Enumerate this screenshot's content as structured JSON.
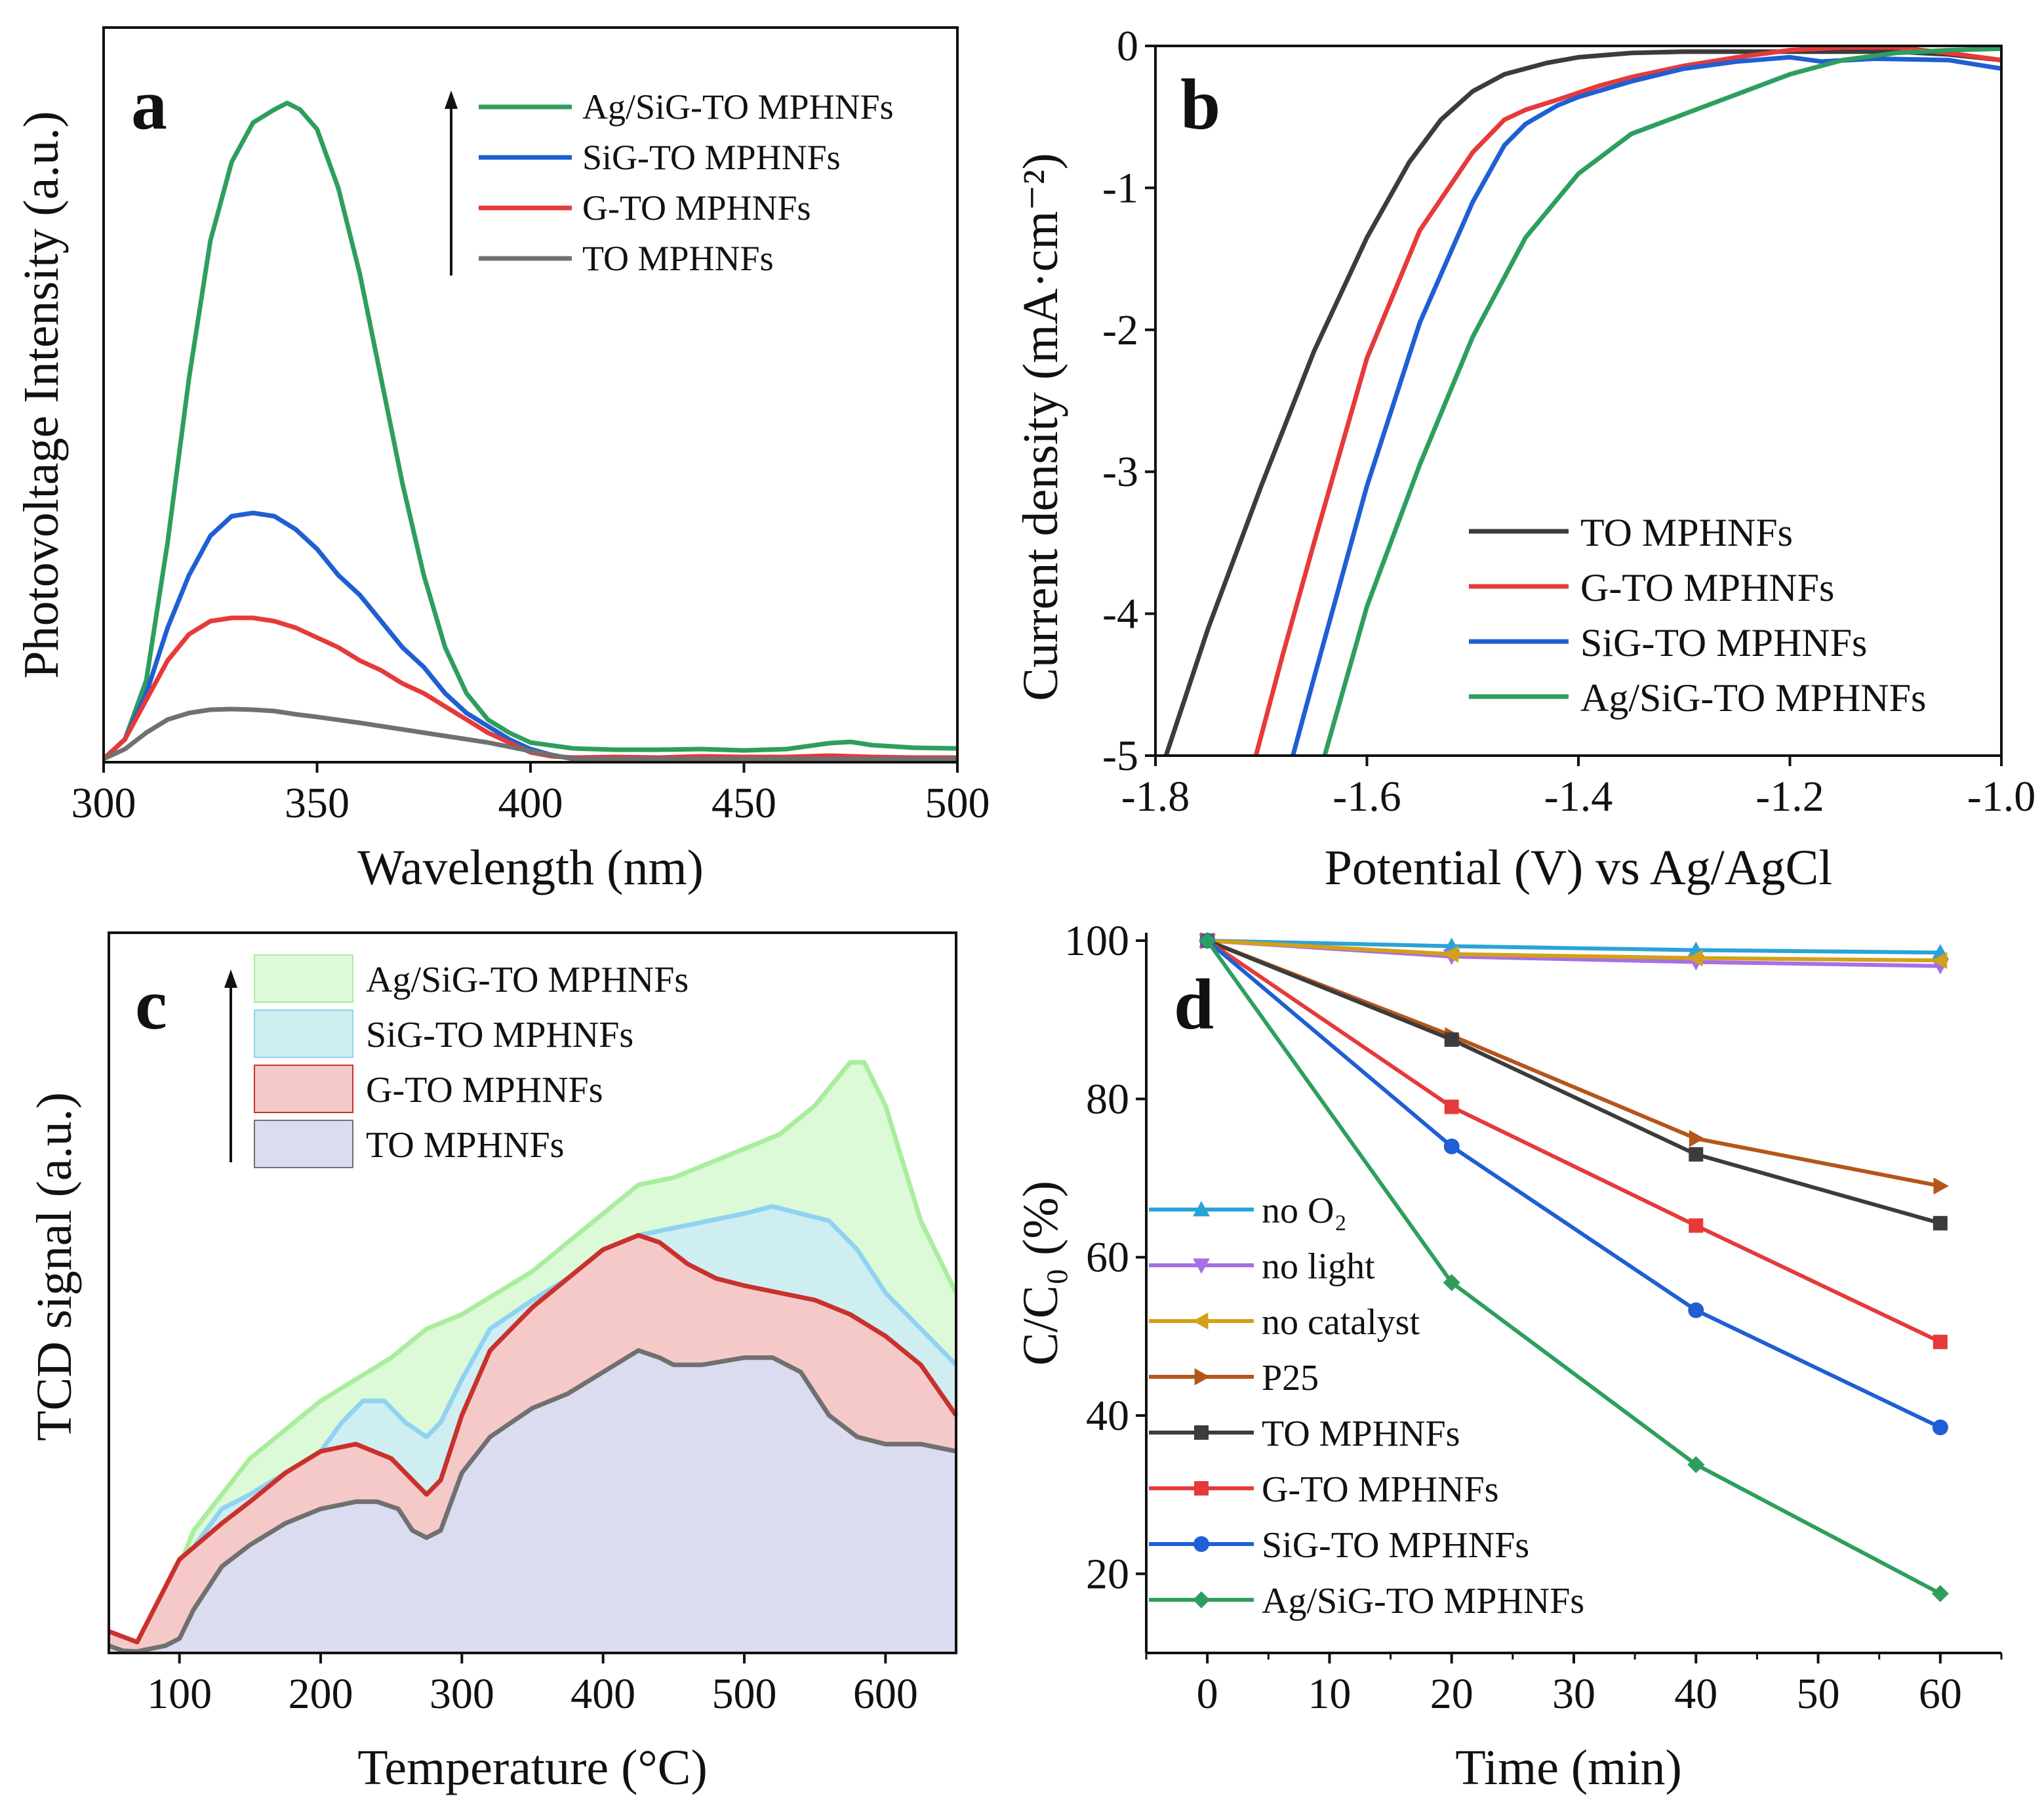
{
  "colors": {
    "green": "#2e9e5e",
    "blue": "#1f5fd3",
    "red": "#e63a3a",
    "gray": "#707070",
    "black": "#3c3c3c",
    "cyan": "#2aa3d8",
    "violet": "#a66fe6",
    "gold": "#d4a017",
    "brown": "#b4561a",
    "fill_green": "#dcf9d8",
    "fill_cyan": "#cfeef2",
    "fill_red": "#f6c9c9",
    "fill_lav": "#dcdcf0",
    "line_green": "#a8ee9c",
    "line_cyan": "#8fd3f0",
    "line_red": "#c9312c",
    "line_gray": "#707070"
  },
  "chart_data": [
    {
      "panel": "a",
      "type": "line",
      "xlabel": "Wavelength (nm)",
      "ylabel": "Photovoltage Intensity (a.u.)",
      "xlim": [
        300,
        500
      ],
      "ylim": [
        0,
        1.0
      ],
      "xticks": [
        300,
        350,
        400,
        450,
        500
      ],
      "legend_arrow": true,
      "legend_position": "top-right",
      "series": [
        {
          "name": "Ag/SiG-TO MPHNFs",
          "color": "green",
          "x": [
            300,
            305,
            310,
            315,
            320,
            325,
            330,
            335,
            340,
            343,
            346,
            350,
            355,
            360,
            365,
            370,
            375,
            380,
            385,
            390,
            395,
            400,
            410,
            420,
            430,
            440,
            450,
            460,
            470,
            475,
            480,
            490,
            500
          ],
          "y": [
            0.0,
            0.03,
            0.12,
            0.33,
            0.58,
            0.79,
            0.91,
            0.97,
            0.99,
            1.0,
            0.99,
            0.96,
            0.87,
            0.74,
            0.58,
            0.42,
            0.28,
            0.17,
            0.1,
            0.06,
            0.04,
            0.025,
            0.016,
            0.014,
            0.014,
            0.015,
            0.013,
            0.015,
            0.024,
            0.026,
            0.021,
            0.017,
            0.016
          ]
        },
        {
          "name": "SiG-TO MPHNFs",
          "color": "blue",
          "x": [
            300,
            305,
            310,
            315,
            320,
            325,
            330,
            335,
            340,
            345,
            350,
            355,
            360,
            365,
            370,
            375,
            380,
            385,
            390,
            395,
            400,
            405,
            410,
            420,
            450,
            480,
            500
          ],
          "y": [
            0.0,
            0.03,
            0.1,
            0.2,
            0.28,
            0.34,
            0.37,
            0.375,
            0.37,
            0.35,
            0.32,
            0.28,
            0.25,
            0.21,
            0.17,
            0.14,
            0.1,
            0.07,
            0.05,
            0.03,
            0.015,
            0.006,
            0.0,
            0.0,
            0.0,
            0.0,
            0.0
          ]
        },
        {
          "name": "G-TO MPHNFs",
          "color": "red",
          "x": [
            300,
            305,
            310,
            315,
            320,
            325,
            330,
            335,
            340,
            345,
            350,
            355,
            360,
            365,
            370,
            375,
            380,
            385,
            390,
            395,
            400,
            405,
            410,
            420,
            430,
            440,
            450,
            460,
            470,
            480,
            490,
            500
          ],
          "y": [
            0.0,
            0.03,
            0.09,
            0.15,
            0.19,
            0.21,
            0.215,
            0.215,
            0.21,
            0.2,
            0.185,
            0.17,
            0.15,
            0.135,
            0.115,
            0.1,
            0.08,
            0.06,
            0.04,
            0.025,
            0.01,
            0.004,
            0.002,
            0.003,
            0.002,
            0.004,
            0.003,
            0.003,
            0.005,
            0.003,
            0.002,
            0.002
          ]
        },
        {
          "name": "TO MPHNFs",
          "color": "gray",
          "x": [
            300,
            305,
            310,
            315,
            320,
            325,
            330,
            335,
            340,
            345,
            350,
            360,
            370,
            380,
            390,
            400,
            410,
            450,
            500
          ],
          "y": [
            0.0,
            0.015,
            0.04,
            0.06,
            0.07,
            0.075,
            0.076,
            0.075,
            0.073,
            0.068,
            0.064,
            0.055,
            0.045,
            0.035,
            0.025,
            0.012,
            0.0,
            0.0,
            0.0
          ]
        }
      ]
    },
    {
      "panel": "b",
      "type": "line",
      "xlabel": "Potential (V) vs Ag/AgCl",
      "ylabel": "Current density (mA·cm⁻²)",
      "xlim": [
        -1.8,
        -1.0
      ],
      "ylim": [
        -5,
        0
      ],
      "xticks": [
        -1.8,
        -1.6,
        -1.4,
        -1.2,
        -1.0
      ],
      "xtick_labels": [
        "-1.8",
        "-1.6",
        "-1.4",
        "-1.2",
        "-1.0"
      ],
      "yticks": [
        -5,
        -4,
        -3,
        -2,
        -1,
        0
      ],
      "legend_position": "bottom-right",
      "series": [
        {
          "name": "TO MPHNFs",
          "color": "black",
          "x": [
            -1.79,
            -1.75,
            -1.7,
            -1.65,
            -1.6,
            -1.56,
            -1.53,
            -1.5,
            -1.47,
            -1.43,
            -1.4,
            -1.35,
            -1.3,
            -1.25,
            -1.2,
            -1.15,
            -1.1,
            -1.05,
            -1.0
          ],
          "y": [
            -5.0,
            -4.1,
            -3.1,
            -2.15,
            -1.35,
            -0.82,
            -0.52,
            -0.32,
            -0.2,
            -0.12,
            -0.08,
            -0.05,
            -0.04,
            -0.04,
            -0.04,
            -0.04,
            -0.04,
            -0.06,
            -0.1
          ]
        },
        {
          "name": "G-TO MPHNFs",
          "color": "red",
          "x": [
            -1.705,
            -1.68,
            -1.65,
            -1.6,
            -1.55,
            -1.5,
            -1.47,
            -1.45,
            -1.42,
            -1.38,
            -1.35,
            -1.3,
            -1.25,
            -1.2,
            -1.15,
            -1.1,
            -1.05,
            -1.0
          ],
          "y": [
            -5.0,
            -4.3,
            -3.5,
            -2.2,
            -1.3,
            -0.75,
            -0.52,
            -0.45,
            -0.38,
            -0.28,
            -0.22,
            -0.14,
            -0.08,
            -0.03,
            -0.01,
            -0.01,
            -0.05,
            -0.1
          ]
        },
        {
          "name": "SiG-TO MPHNFs",
          "color": "blue",
          "x": [
            -1.67,
            -1.65,
            -1.6,
            -1.55,
            -1.5,
            -1.47,
            -1.45,
            -1.42,
            -1.4,
            -1.35,
            -1.3,
            -1.25,
            -1.2,
            -1.17,
            -1.12,
            -1.05,
            -1.0
          ],
          "y": [
            -5.0,
            -4.45,
            -3.1,
            -1.95,
            -1.1,
            -0.7,
            -0.55,
            -0.42,
            -0.36,
            -0.25,
            -0.16,
            -0.11,
            -0.08,
            -0.11,
            -0.09,
            -0.1,
            -0.16
          ]
        },
        {
          "name": "Ag/SiG-TO MPHNFs",
          "color": "green",
          "x": [
            -1.64,
            -1.6,
            -1.55,
            -1.5,
            -1.45,
            -1.4,
            -1.35,
            -1.3,
            -1.25,
            -1.2,
            -1.15,
            -1.1,
            -1.05,
            -1.0
          ],
          "y": [
            -5.0,
            -3.95,
            -2.95,
            -2.05,
            -1.35,
            -0.9,
            -0.62,
            -0.48,
            -0.34,
            -0.2,
            -0.1,
            -0.05,
            -0.03,
            -0.02
          ]
        }
      ]
    },
    {
      "panel": "c",
      "type": "area",
      "xlabel": "Temperature (°C)",
      "ylabel": "TCD  signal (a.u.)",
      "xlim": [
        50,
        650
      ],
      "ylim": [
        0,
        1.0
      ],
      "xticks": [
        100,
        200,
        300,
        400,
        500,
        600
      ],
      "legend_arrow": true,
      "legend_position": "top-left",
      "series": [
        {
          "name": "Ag/SiG-TO MPHNFs",
          "fill": "fill_green",
          "line": "line_green",
          "x": [
            50,
            70,
            100,
            110,
            130,
            150,
            175,
            200,
            225,
            250,
            275,
            300,
            325,
            350,
            375,
            400,
            425,
            450,
            475,
            500,
            525,
            550,
            575,
            585,
            600,
            625,
            650
          ],
          "y": [
            0.03,
            0.015,
            0.12,
            0.17,
            0.22,
            0.27,
            0.31,
            0.35,
            0.38,
            0.41,
            0.45,
            0.47,
            0.5,
            0.53,
            0.57,
            0.61,
            0.65,
            0.66,
            0.68,
            0.7,
            0.72,
            0.76,
            0.82,
            0.82,
            0.76,
            0.6,
            0.5
          ]
        },
        {
          "name": "SiG-TO MPHNFs",
          "fill": "fill_cyan",
          "line": "line_cyan",
          "x": [
            50,
            70,
            100,
            130,
            150,
            175,
            200,
            215,
            230,
            245,
            260,
            275,
            285,
            300,
            320,
            350,
            375,
            400,
            425,
            450,
            475,
            500,
            520,
            540,
            560,
            580,
            600,
            625,
            650
          ],
          "y": [
            0.03,
            0.015,
            0.12,
            0.2,
            0.22,
            0.25,
            0.28,
            0.32,
            0.35,
            0.35,
            0.32,
            0.3,
            0.32,
            0.38,
            0.45,
            0.49,
            0.52,
            0.56,
            0.58,
            0.59,
            0.6,
            0.61,
            0.62,
            0.61,
            0.6,
            0.56,
            0.5,
            0.45,
            0.4
          ]
        },
        {
          "name": "G-TO MPHNFs",
          "fill": "fill_red",
          "line": "line_red",
          "x": [
            50,
            70,
            100,
            130,
            150,
            175,
            200,
            225,
            250,
            265,
            275,
            285,
            300,
            320,
            350,
            375,
            400,
            425,
            440,
            460,
            480,
            500,
            525,
            550,
            575,
            600,
            625,
            650
          ],
          "y": [
            0.03,
            0.015,
            0.13,
            0.18,
            0.21,
            0.25,
            0.28,
            0.29,
            0.27,
            0.24,
            0.22,
            0.24,
            0.33,
            0.42,
            0.48,
            0.52,
            0.56,
            0.58,
            0.57,
            0.54,
            0.52,
            0.51,
            0.5,
            0.49,
            0.47,
            0.44,
            0.4,
            0.33
          ]
        },
        {
          "name": "TO MPHNFs",
          "fill": "fill_lav",
          "line": "line_gray",
          "x": [
            50,
            60,
            70,
            90,
            100,
            110,
            130,
            150,
            175,
            200,
            225,
            240,
            255,
            265,
            275,
            285,
            300,
            320,
            350,
            375,
            400,
            425,
            440,
            450,
            470,
            500,
            520,
            540,
            560,
            580,
            600,
            625,
            650
          ],
          "y": [
            0.01,
            0.003,
            0.002,
            0.01,
            0.02,
            0.06,
            0.12,
            0.15,
            0.18,
            0.2,
            0.21,
            0.21,
            0.2,
            0.17,
            0.16,
            0.17,
            0.25,
            0.3,
            0.34,
            0.36,
            0.39,
            0.42,
            0.41,
            0.4,
            0.4,
            0.41,
            0.41,
            0.39,
            0.33,
            0.3,
            0.29,
            0.29,
            0.28
          ]
        }
      ]
    },
    {
      "panel": "d",
      "type": "line",
      "xlabel": "Time (min)",
      "ylabel": "C/C₀ (%)",
      "xlim": [
        -5,
        65
      ],
      "ylim": [
        10,
        101
      ],
      "xticks": [
        0,
        10,
        20,
        30,
        40,
        50,
        60
      ],
      "yticks": [
        20,
        40,
        60,
        80,
        100
      ],
      "legend_position": "bottom-left",
      "series": [
        {
          "name": "no O₂",
          "color": "cyan",
          "marker": "triangle-up",
          "x": [
            0,
            20,
            40,
            60
          ],
          "y": [
            100,
            99.3,
            98.8,
            98.5
          ]
        },
        {
          "name": "no light",
          "color": "violet",
          "marker": "triangle-down",
          "x": [
            0,
            20,
            40,
            60
          ],
          "y": [
            100,
            98.0,
            97.3,
            96.8
          ]
        },
        {
          "name": "no catalyst",
          "color": "gold",
          "marker": "triangle-left",
          "x": [
            0,
            20,
            40,
            60
          ],
          "y": [
            100,
            98.3,
            97.8,
            97.5
          ]
        },
        {
          "name": "P25",
          "color": "brown",
          "marker": "triangle-right",
          "x": [
            0,
            20,
            40,
            60
          ],
          "y": [
            100,
            88,
            75,
            69
          ]
        },
        {
          "name": "TO MPHNFs",
          "color": "black",
          "marker": "square",
          "x": [
            0,
            20,
            40,
            60
          ],
          "y": [
            100,
            87.5,
            73,
            64.3
          ]
        },
        {
          "name": "G-TO MPHNFs",
          "color": "red",
          "marker": "square",
          "x": [
            0,
            20,
            40,
            60
          ],
          "y": [
            100,
            79,
            64,
            49.3
          ]
        },
        {
          "name": "SiG-TO MPHNFs",
          "color": "blue",
          "marker": "circle",
          "x": [
            0,
            20,
            40,
            60
          ],
          "y": [
            100,
            74,
            53.3,
            38.5
          ]
        },
        {
          "name": "Ag/SiG-TO MPHNFs",
          "color": "green",
          "marker": "diamond",
          "x": [
            0,
            20,
            40,
            60
          ],
          "y": [
            100,
            56.8,
            33.8,
            17.5
          ]
        }
      ]
    }
  ]
}
